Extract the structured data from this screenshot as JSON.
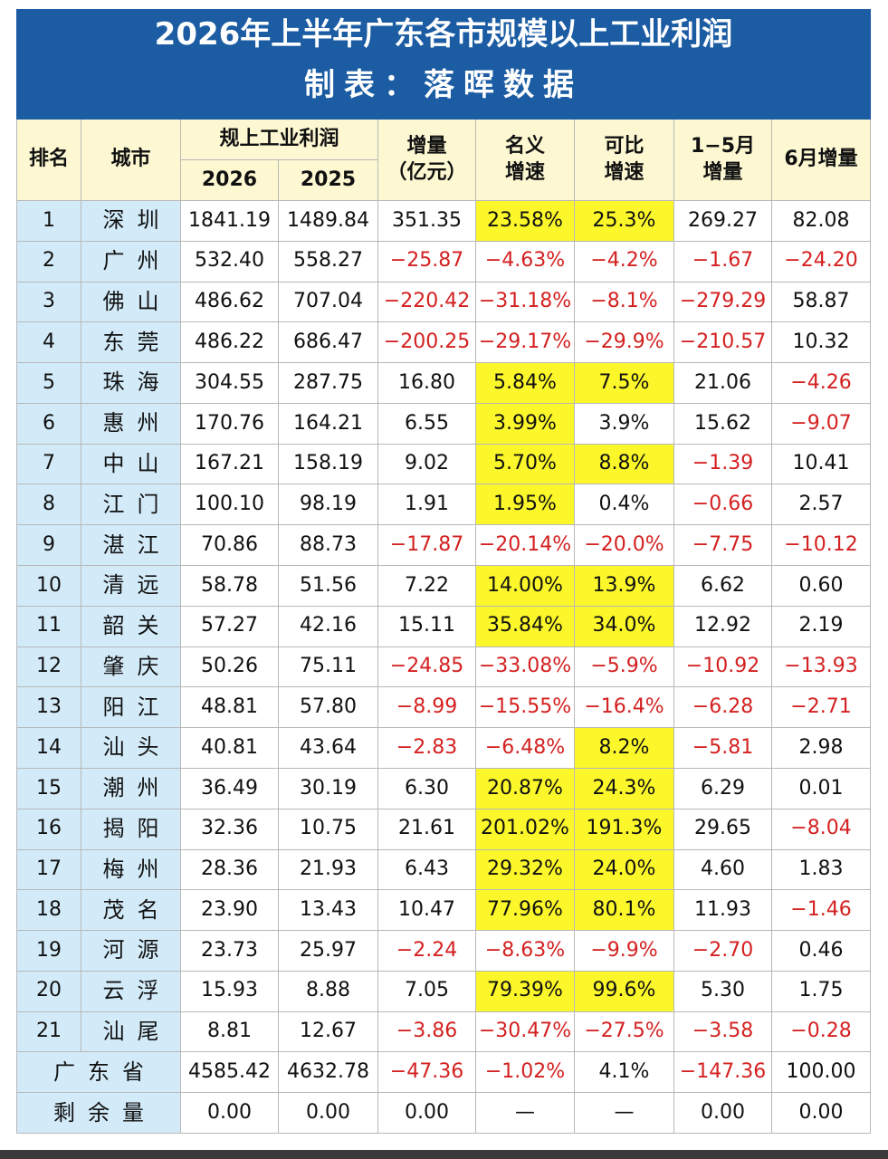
{
  "title": {
    "line1": "2026年上半年广东各市规模以上工业利润",
    "line2": "制表：落晖数据"
  },
  "header": {
    "rank": "排名",
    "city": "城市",
    "profit": "规上工业利润",
    "years": [
      "2026",
      "2025"
    ],
    "increase": [
      "增量",
      "（亿元）"
    ],
    "nominal": [
      "名义",
      "增速"
    ],
    "comparable": [
      "可比",
      "增速"
    ],
    "jan_may": [
      "1−5月",
      "增量"
    ],
    "june": "6月增量"
  },
  "table": {
    "rows": [
      {
        "rank": "1",
        "city": "深圳",
        "cells": [
          "1841.19",
          "1489.84",
          "351.35",
          "23.58%",
          "25.3%",
          "269.27",
          "82.08"
        ],
        "highlight": [
          true,
          true
        ]
      },
      {
        "rank": "2",
        "city": "广州",
        "cells": [
          "532.40",
          "558.27",
          "−25.87",
          "−4.63%",
          "−4.2%",
          "−1.67",
          "−24.20"
        ],
        "highlight": [
          false,
          false
        ]
      },
      {
        "rank": "3",
        "city": "佛山",
        "cells": [
          "486.62",
          "707.04",
          "−220.42",
          "−31.18%",
          "−8.1%",
          "−279.29",
          "58.87"
        ],
        "highlight": [
          false,
          false
        ]
      },
      {
        "rank": "4",
        "city": "东莞",
        "cells": [
          "486.22",
          "686.47",
          "−200.25",
          "−29.17%",
          "−29.9%",
          "−210.57",
          "10.32"
        ],
        "highlight": [
          false,
          false
        ]
      },
      {
        "rank": "5",
        "city": "珠海",
        "cells": [
          "304.55",
          "287.75",
          "16.80",
          "5.84%",
          "7.5%",
          "21.06",
          "−4.26"
        ],
        "highlight": [
          true,
          true
        ]
      },
      {
        "rank": "6",
        "city": "惠州",
        "cells": [
          "170.76",
          "164.21",
          "6.55",
          "3.99%",
          "3.9%",
          "15.62",
          "−9.07"
        ],
        "highlight": [
          true,
          false
        ]
      },
      {
        "rank": "7",
        "city": "中山",
        "cells": [
          "167.21",
          "158.19",
          "9.02",
          "5.70%",
          "8.8%",
          "−1.39",
          "10.41"
        ],
        "highlight": [
          true,
          true
        ]
      },
      {
        "rank": "8",
        "city": "江门",
        "cells": [
          "100.10",
          "98.19",
          "1.91",
          "1.95%",
          "0.4%",
          "−0.66",
          "2.57"
        ],
        "highlight": [
          true,
          false
        ]
      },
      {
        "rank": "9",
        "city": "湛江",
        "cells": [
          "70.86",
          "88.73",
          "−17.87",
          "−20.14%",
          "−20.0%",
          "−7.75",
          "−10.12"
        ],
        "highlight": [
          false,
          false
        ]
      },
      {
        "rank": "10",
        "city": "清远",
        "cells": [
          "58.78",
          "51.56",
          "7.22",
          "14.00%",
          "13.9%",
          "6.62",
          "0.60"
        ],
        "highlight": [
          true,
          true
        ]
      },
      {
        "rank": "11",
        "city": "韶关",
        "cells": [
          "57.27",
          "42.16",
          "15.11",
          "35.84%",
          "34.0%",
          "12.92",
          "2.19"
        ],
        "highlight": [
          true,
          true
        ]
      },
      {
        "rank": "12",
        "city": "肇庆",
        "cells": [
          "50.26",
          "75.11",
          "−24.85",
          "−33.08%",
          "−5.9%",
          "−10.92",
          "−13.93"
        ],
        "highlight": [
          false,
          false
        ]
      },
      {
        "rank": "13",
        "city": "阳江",
        "cells": [
          "48.81",
          "57.80",
          "−8.99",
          "−15.55%",
          "−16.4%",
          "−6.28",
          "−2.71"
        ],
        "highlight": [
          false,
          false
        ]
      },
      {
        "rank": "14",
        "city": "汕头",
        "cells": [
          "40.81",
          "43.64",
          "−2.83",
          "−6.48%",
          "8.2%",
          "−5.81",
          "2.98"
        ],
        "highlight": [
          false,
          true
        ]
      },
      {
        "rank": "15",
        "city": "潮州",
        "cells": [
          "36.49",
          "30.19",
          "6.30",
          "20.87%",
          "24.3%",
          "6.29",
          "0.01"
        ],
        "highlight": [
          true,
          true
        ]
      },
      {
        "rank": "16",
        "city": "揭阳",
        "cells": [
          "32.36",
          "10.75",
          "21.61",
          "201.02%",
          "191.3%",
          "29.65",
          "−8.04"
        ],
        "highlight": [
          true,
          true
        ]
      },
      {
        "rank": "17",
        "city": "梅州",
        "cells": [
          "28.36",
          "21.93",
          "6.43",
          "29.32%",
          "24.0%",
          "4.60",
          "1.83"
        ],
        "highlight": [
          true,
          true
        ]
      },
      {
        "rank": "18",
        "city": "茂名",
        "cells": [
          "23.90",
          "13.43",
          "10.47",
          "77.96%",
          "80.1%",
          "11.93",
          "−1.46"
        ],
        "highlight": [
          true,
          true
        ]
      },
      {
        "rank": "19",
        "city": "河源",
        "cells": [
          "23.73",
          "25.97",
          "−2.24",
          "−8.63%",
          "−9.9%",
          "−2.70",
          "0.46"
        ],
        "highlight": [
          false,
          false
        ]
      },
      {
        "rank": "20",
        "city": "云浮",
        "cells": [
          "15.93",
          "8.88",
          "7.05",
          "79.39%",
          "99.6%",
          "5.30",
          "1.75"
        ],
        "highlight": [
          true,
          true
        ]
      },
      {
        "rank": "21",
        "city": "汕尾",
        "cells": [
          "8.81",
          "12.67",
          "−3.86",
          "−30.47%",
          "−27.5%",
          "−3.58",
          "−0.28"
        ],
        "highlight": [
          false,
          false
        ]
      }
    ],
    "totals": [
      {
        "label": "广东省",
        "cells": [
          "4585.42",
          "4632.78",
          "−47.36",
          "−1.02%",
          "4.1%",
          "−147.36",
          "100.00"
        ]
      },
      {
        "label": "剩余量",
        "cells": [
          "0.00",
          "0.00",
          "0.00",
          "—",
          "—",
          "0.00",
          "0.00"
        ]
      }
    ]
  }
}
